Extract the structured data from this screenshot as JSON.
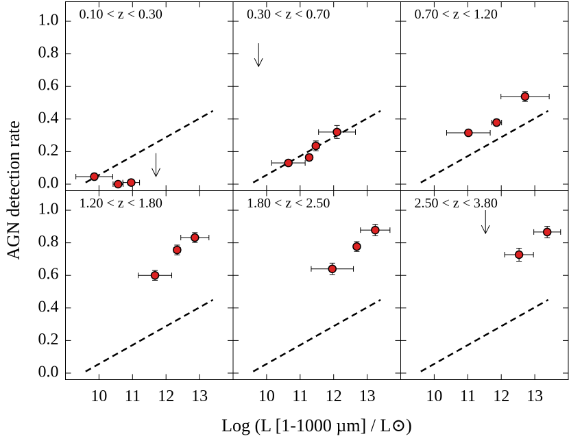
{
  "chart_data": [
    {
      "type": "scatter",
      "title": "0.10 < z < 0.30",
      "x": [
        9.86,
        10.57,
        10.96
      ],
      "values": [
        0.046,
        0.0,
        0.01
      ],
      "xerr": [
        0.55,
        0.15,
        0.25
      ],
      "yerr": [
        0.02,
        0.01,
        0.01
      ],
      "upper_limits": {
        "x": [
          11.7
        ],
        "y": [
          0.19
        ]
      }
    },
    {
      "type": "scatter",
      "title": "0.30 < z < 0.70",
      "x": [
        10.65,
        11.27,
        11.47,
        12.1
      ],
      "values": [
        0.13,
        0.164,
        0.235,
        0.32
      ],
      "xerr": [
        0.5,
        0.1,
        0.1,
        0.55
      ],
      "yerr": [
        0.01,
        0.02,
        0.03,
        0.04
      ],
      "upper_limits": {
        "x": [
          9.76
        ],
        "y": [
          0.865
        ]
      }
    },
    {
      "type": "scatter",
      "title": "0.70 < z < 1.20",
      "x": [
        11.02,
        11.86,
        12.71
      ],
      "values": [
        0.315,
        0.378,
        0.538
      ],
      "xerr": [
        0.65,
        0.15,
        0.72
      ],
      "yerr": [
        0.015,
        0.02,
        0.03
      ]
    },
    {
      "type": "scatter",
      "title": "1.20 < z < 1.80",
      "x": [
        11.67,
        12.33,
        12.86
      ],
      "values": [
        0.6,
        0.756,
        0.832
      ],
      "xerr": [
        0.5,
        0.1,
        0.42
      ],
      "yerr": [
        0.03,
        0.03,
        0.03
      ]
    },
    {
      "type": "scatter",
      "title": "1.80 < z < 2.50",
      "x": [
        11.96,
        12.69,
        13.24
      ],
      "values": [
        0.64,
        0.777,
        0.878
      ],
      "xerr": [
        0.63,
        0.1,
        0.44
      ],
      "yerr": [
        0.035,
        0.03,
        0.035
      ]
    },
    {
      "type": "scatter",
      "title": "2.50 < z < 3.80",
      "x": [
        12.53,
        13.37
      ],
      "values": [
        0.727,
        0.866
      ],
      "xerr": [
        0.43,
        0.4
      ],
      "yerr": [
        0.04,
        0.035
      ],
      "upper_limits": {
        "x": [
          11.53
        ],
        "y": [
          1.0
        ]
      }
    }
  ],
  "axes": {
    "xlabel": "Log (L [1-1000 µm] / L⊙)",
    "ylabel": "AGN detection rate",
    "xlim": [
      9,
      14
    ],
    "ylim": [
      -0.04,
      1.12
    ],
    "xticks": [
      10,
      11,
      12,
      13
    ],
    "yticks": [
      {
        "value": 0,
        "label": "0.0"
      },
      0.2,
      0.4,
      0.6,
      0.8,
      {
        "value": 1,
        "label": "1.0"
      }
    ],
    "reference_line": {
      "x": [
        9.6,
        13.4
      ],
      "y": [
        0.01,
        0.45
      ]
    },
    "marker_color": "#dd2222"
  }
}
